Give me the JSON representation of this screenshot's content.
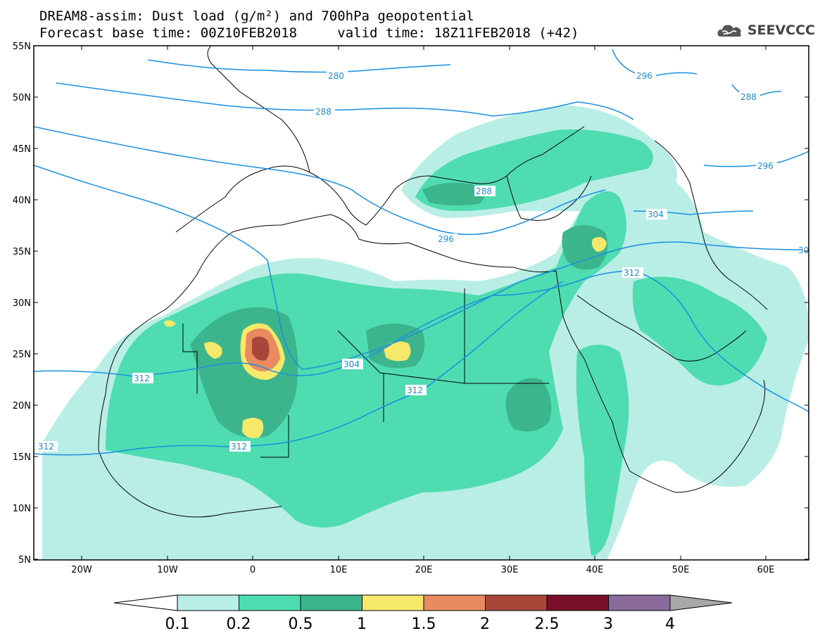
{
  "title": {
    "line1": "DREAM8-assim: Dust load (g/m²) and 700hPa geopotential",
    "forecast_base": "Forecast base time: 00Z10FEB2018",
    "valid": "valid time: 18Z11FEB2018 (+42)"
  },
  "logo": {
    "text": "SEEVCCC",
    "icon": "cloud-icon"
  },
  "map": {
    "lat_labels": [
      "55N",
      "50N",
      "45N",
      "40N",
      "35N",
      "30N",
      "25N",
      "20N",
      "15N",
      "10N",
      "5N"
    ],
    "lon_labels": [
      "20W",
      "10W",
      "0",
      "10E",
      "20E",
      "30E",
      "40E",
      "50E",
      "60E"
    ],
    "contour_labels": [
      "280",
      "288",
      "296",
      "296",
      "288",
      "296",
      "304",
      "312",
      "312",
      "312",
      "304",
      "312",
      "312",
      "288",
      "30"
    ],
    "contour_color": "#1a8fe0"
  },
  "colorbar": {
    "labels": [
      "0.1",
      "0.2",
      "0.5",
      "1",
      "1.5",
      "2",
      "2.5",
      "3",
      "4"
    ],
    "colors": [
      "#b8eee5",
      "#4fdcb0",
      "#3db58c",
      "#f5e86a",
      "#e98a5f",
      "#a8463a",
      "#7a0f2a",
      "#8a6a9a",
      "#a8a8a8"
    ]
  }
}
